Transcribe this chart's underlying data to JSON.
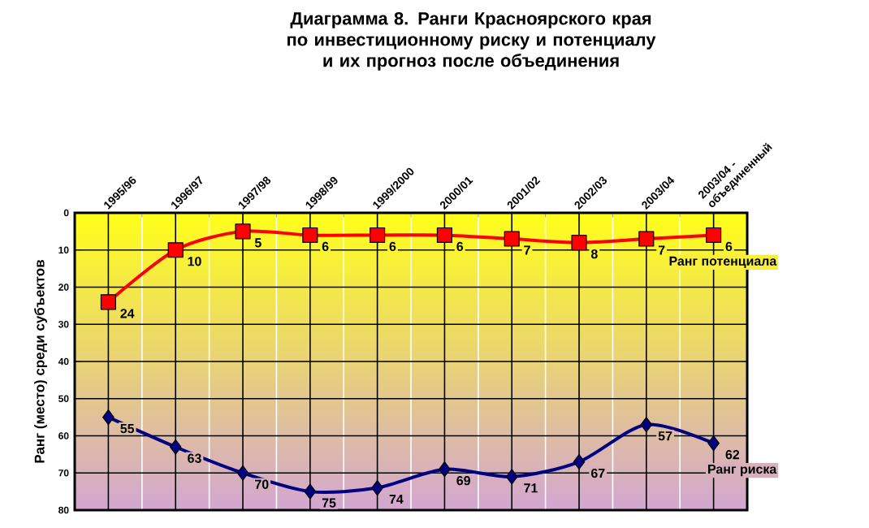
{
  "chart_data": {
    "type": "line",
    "title": "Диаграмма 8. Ранги Красноярского края по инвестиционному риску и потенциалу и их прогноз после объединения",
    "ylabel": "Ранг (место) среди субъектов",
    "categories": [
      "1995/96",
      "1996/97",
      "1997/98",
      "1998/99",
      "1999/2000",
      "2000/01",
      "2001/02",
      "2002/03",
      "2003/04",
      "2003/04 - объединенный"
    ],
    "ylim": [
      80,
      0
    ],
    "yticks": [
      0,
      10,
      20,
      30,
      40,
      50,
      60,
      70,
      80
    ],
    "grid": true,
    "data_labels": true,
    "legend": "right",
    "series": [
      {
        "name": "Ранг потенциала",
        "color": "#ff0000",
        "marker": "square",
        "values": [
          24,
          10,
          5,
          6,
          6,
          6,
          7,
          8,
          7,
          6
        ]
      },
      {
        "name": "Ранг риска",
        "color": "#000080",
        "marker": "diamond",
        "values": [
          55,
          63,
          70,
          75,
          74,
          69,
          71,
          67,
          57,
          62
        ]
      }
    ]
  }
}
